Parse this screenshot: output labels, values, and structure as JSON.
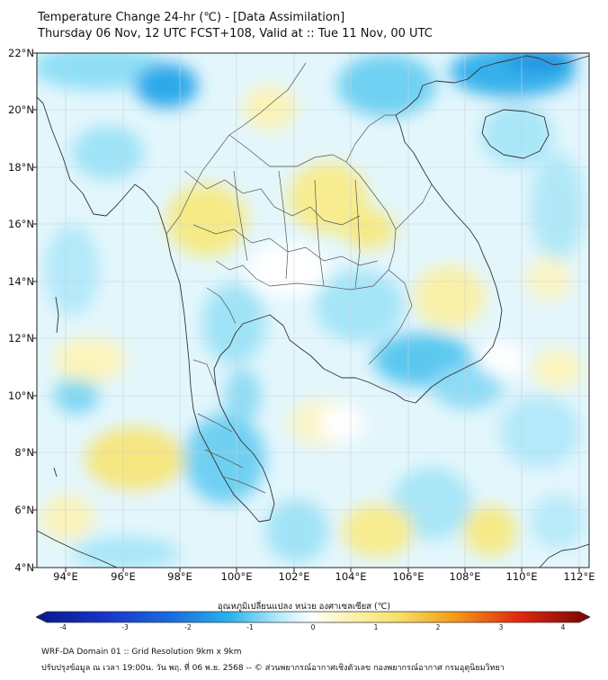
{
  "title_line1": "Temperature Change 24-hr (℃) - [Data Assimilation]",
  "title_line2": "Thursday 06 Nov, 12 UTC FCST+108, Valid at :: Tue 11 Nov, 00 UTC",
  "lat_labels": [
    "22°N",
    "20°N",
    "18°N",
    "16°N",
    "14°N",
    "12°N",
    "10°N",
    "8°N",
    "6°N",
    "4°N"
  ],
  "lon_labels": [
    "94°E",
    "96°E",
    "98°E",
    "100°E",
    "102°E",
    "104°E",
    "106°E",
    "108°E",
    "110°E",
    "112°E"
  ],
  "colorbar": {
    "title": "อุณหภูมิเปลี่ยนแปลง หน่วย องศาเซลเซียส (℃)",
    "ticks": [
      "-4",
      "-3",
      "-2",
      "-1",
      "0",
      "1",
      "2",
      "3",
      "4"
    ],
    "range": [
      -4,
      4
    ]
  },
  "footer_line1": "WRF-DA Domain 01 :: Grid Resolution 9km x 9km",
  "footer_line2": "ปรับปรุงข้อมูล ณ เวลา 19:00น. วัน พฤ. ที่ 06 พ.ย. 2568 -- © ส่วนพยากรณ์อากาศเชิงตัวเลข กองพยากรณ์อากาศ กรมอุตุนิยมวิทยา",
  "colors": {
    "neutral": "#ffffff",
    "light_cyan": "#c6f0fb",
    "cyan": "#7fd9f4",
    "blue": "#29a8e8",
    "pale_yellow": "#fbf6c2",
    "yellow": "#f6ea86",
    "border": "#333333"
  }
}
